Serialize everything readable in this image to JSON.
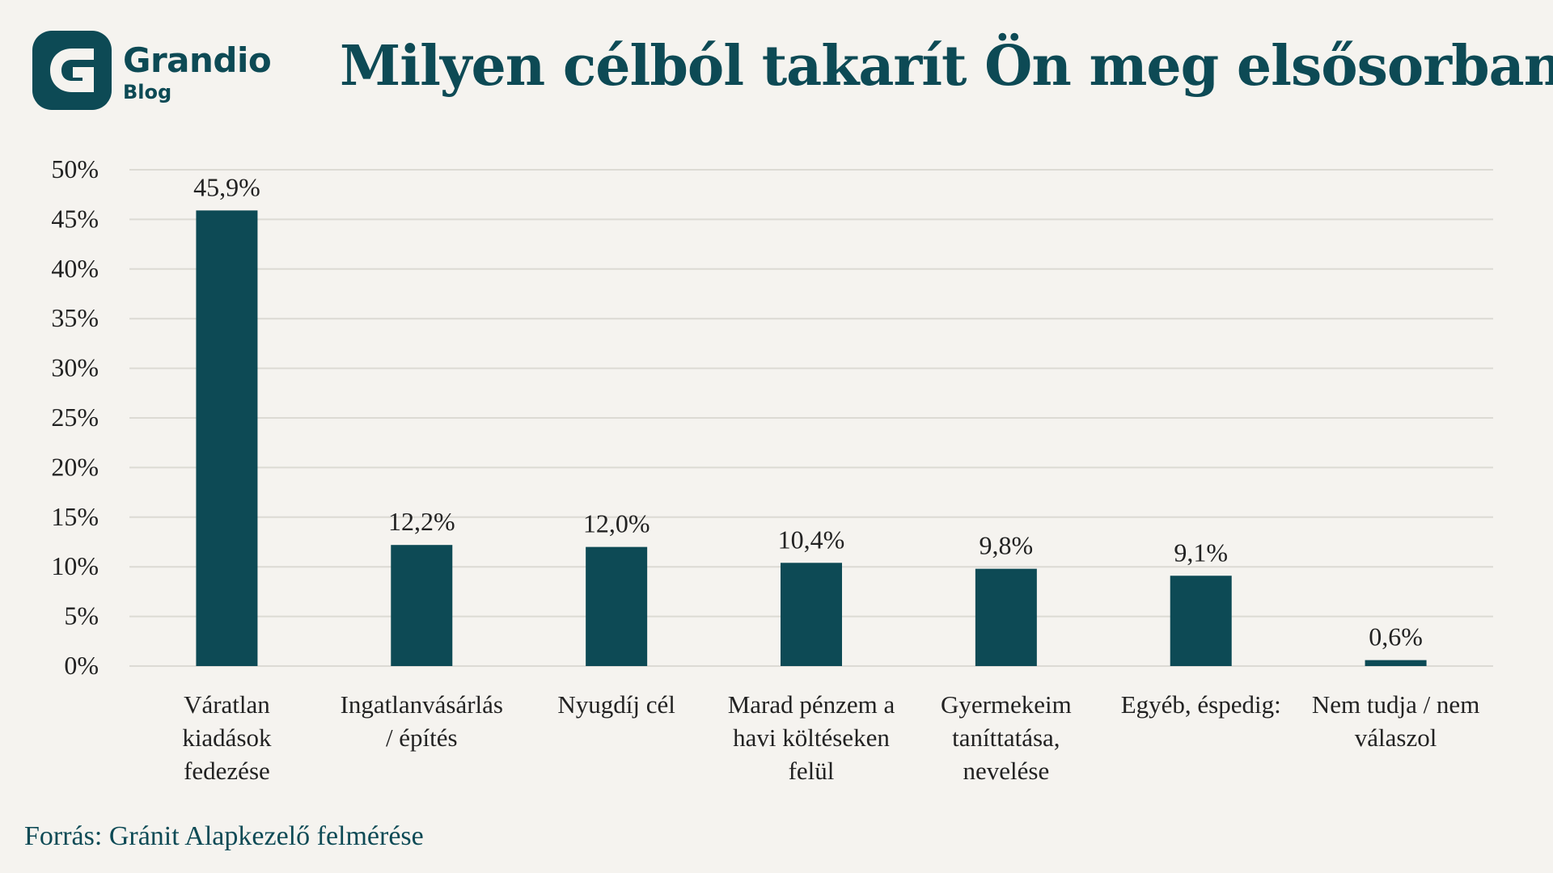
{
  "brand": {
    "name": "Grandio",
    "sub": "Blog",
    "color": "#0d4a55"
  },
  "title": "Milyen célból takarít Ön meg elsősorban?",
  "source": "Forrás: Gránit Alapkezelő felmérése",
  "colors": {
    "bar": "#0d4a55",
    "grid": "#dcdad4",
    "background": "#f5f3ef",
    "text": "#222222"
  },
  "chart_data": {
    "type": "bar",
    "title": "Milyen célból takarít Ön meg elsősorban?",
    "categories": [
      [
        "Váratlan",
        "kiadások",
        "fedezése"
      ],
      [
        "Ingatlanvásárlás",
        "/ építés"
      ],
      [
        "Nyugdíj cél"
      ],
      [
        "Marad pénzem a",
        "havi költéseken",
        "felül"
      ],
      [
        "Gyermekeim",
        "taníttatása,",
        "nevelése"
      ],
      [
        "Egyéb, éspedig:"
      ],
      [
        "Nem tudja / nem",
        "válaszol"
      ]
    ],
    "values": [
      45.9,
      12.2,
      12.0,
      10.4,
      9.8,
      9.1,
      0.6
    ],
    "value_labels": [
      "45,9%",
      "12,2%",
      "12,0%",
      "10,4%",
      "9,8%",
      "9,1%",
      "0,6%"
    ],
    "ylim": [
      0,
      50
    ],
    "yticks": [
      0,
      5,
      10,
      15,
      20,
      25,
      30,
      35,
      40,
      45,
      50
    ],
    "ytick_labels": [
      "0%",
      "5%",
      "10%",
      "15%",
      "20%",
      "25%",
      "30%",
      "35%",
      "40%",
      "45%",
      "50%"
    ],
    "grid": true,
    "legend": "none"
  }
}
